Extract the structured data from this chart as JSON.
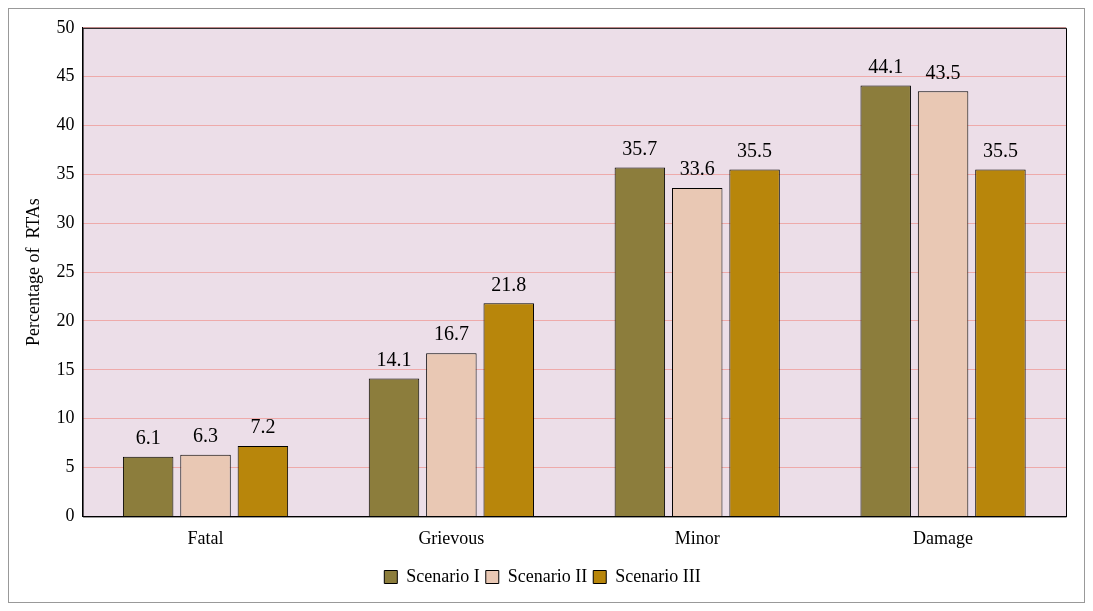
{
  "chart_data": {
    "type": "bar",
    "ylabel": "Percentage of  RTAs",
    "categories": [
      "Fatal",
      "Grievous",
      "Minor",
      "Damage"
    ],
    "series": [
      {
        "name": "Scenario I",
        "color": "#8c7d3c",
        "values": [
          6.1,
          14.1,
          35.7,
          44.1
        ]
      },
      {
        "name": "Scenario II",
        "color": "#e9c8b4",
        "values": [
          6.3,
          16.7,
          33.6,
          43.5
        ]
      },
      {
        "name": "Scenario III",
        "color": "#b8860b",
        "values": [
          7.2,
          21.8,
          35.5,
          35.5
        ]
      }
    ],
    "ylim": [
      0,
      50
    ],
    "yticks": [
      0,
      5,
      10,
      15,
      20,
      25,
      30,
      35,
      40,
      45,
      50
    ],
    "grid": "y",
    "legend": "bottom",
    "data_labels": true
  }
}
